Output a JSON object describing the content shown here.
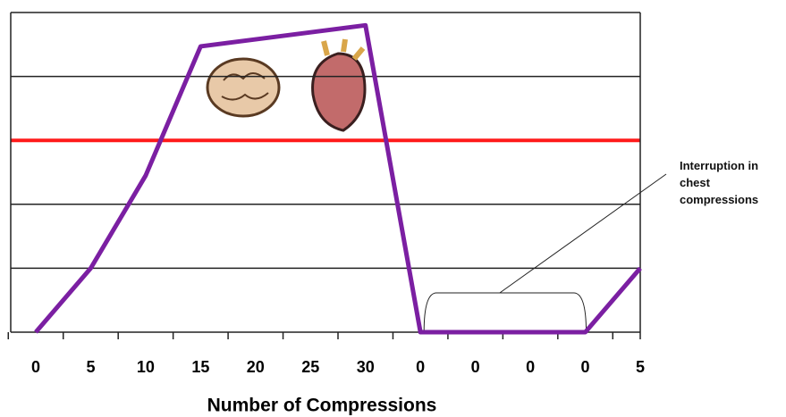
{
  "chart_data": {
    "type": "line",
    "x_label": "Number of Compressions",
    "categories": [
      "0",
      "5",
      "10",
      "15",
      "20",
      "25",
      "30",
      "0",
      "0",
      "0",
      "0",
      "5"
    ],
    "values": [
      0,
      1.0,
      2.45,
      4.47,
      4.58,
      4.69,
      4.8,
      0,
      0,
      0,
      0,
      1.0
    ],
    "color": "#7b1fa2",
    "ylim": [
      0,
      5
    ],
    "yticks": [
      0,
      1,
      2,
      3,
      4,
      5
    ],
    "grid": true,
    "threshold": {
      "value": 3,
      "color": "#ff1a1a"
    },
    "annotation": "Interruption in chest compressions"
  }
}
